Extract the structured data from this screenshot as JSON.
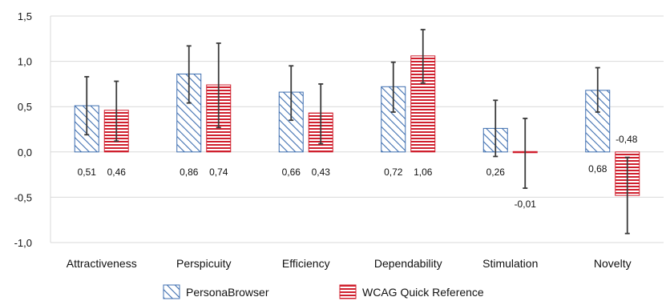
{
  "chart_data": {
    "type": "bar",
    "categories": [
      "Attractiveness",
      "Perspicuity",
      "Efficiency",
      "Dependability",
      "Stimulation",
      "Novelty"
    ],
    "series": [
      {
        "name": "PersonaBrowser",
        "values": [
          0.51,
          0.86,
          0.66,
          0.72,
          0.26,
          0.68
        ],
        "labels": [
          "0,51",
          "0,86",
          "0,66",
          "0,72",
          "0,26",
          "0,68"
        ],
        "error_low": [
          0.19,
          0.54,
          0.35,
          0.44,
          -0.05,
          0.44
        ],
        "error_high": [
          0.83,
          1.17,
          0.95,
          0.99,
          0.57,
          0.93
        ],
        "pattern": "diagonal-hatch",
        "color": "#3f6fb0"
      },
      {
        "name": "WCAG Quick Reference",
        "values": [
          0.46,
          0.74,
          0.43,
          1.06,
          -0.01,
          -0.48
        ],
        "labels": [
          "0,46",
          "0,74",
          "0,43",
          "1,06",
          "-0,01",
          "-0,48"
        ],
        "error_low": [
          0.12,
          0.27,
          0.09,
          0.76,
          -0.4,
          -0.9
        ],
        "error_high": [
          0.78,
          1.2,
          0.75,
          1.35,
          0.37,
          -0.06
        ],
        "pattern": "horizontal-lines",
        "color": "#d0202e"
      }
    ],
    "y_ticks": [
      "1,5",
      "1,0",
      "0,5",
      "0,0",
      "-0,5",
      "-1,0"
    ],
    "y_tick_values": [
      1.5,
      1.0,
      0.5,
      0.0,
      -0.5,
      -1.0
    ],
    "ylim": [
      -1.0,
      1.5
    ],
    "grid": true,
    "legend_position": "bottom",
    "error_bar_color": "#3a3a3a",
    "grid_color": "#d9d9d9"
  }
}
